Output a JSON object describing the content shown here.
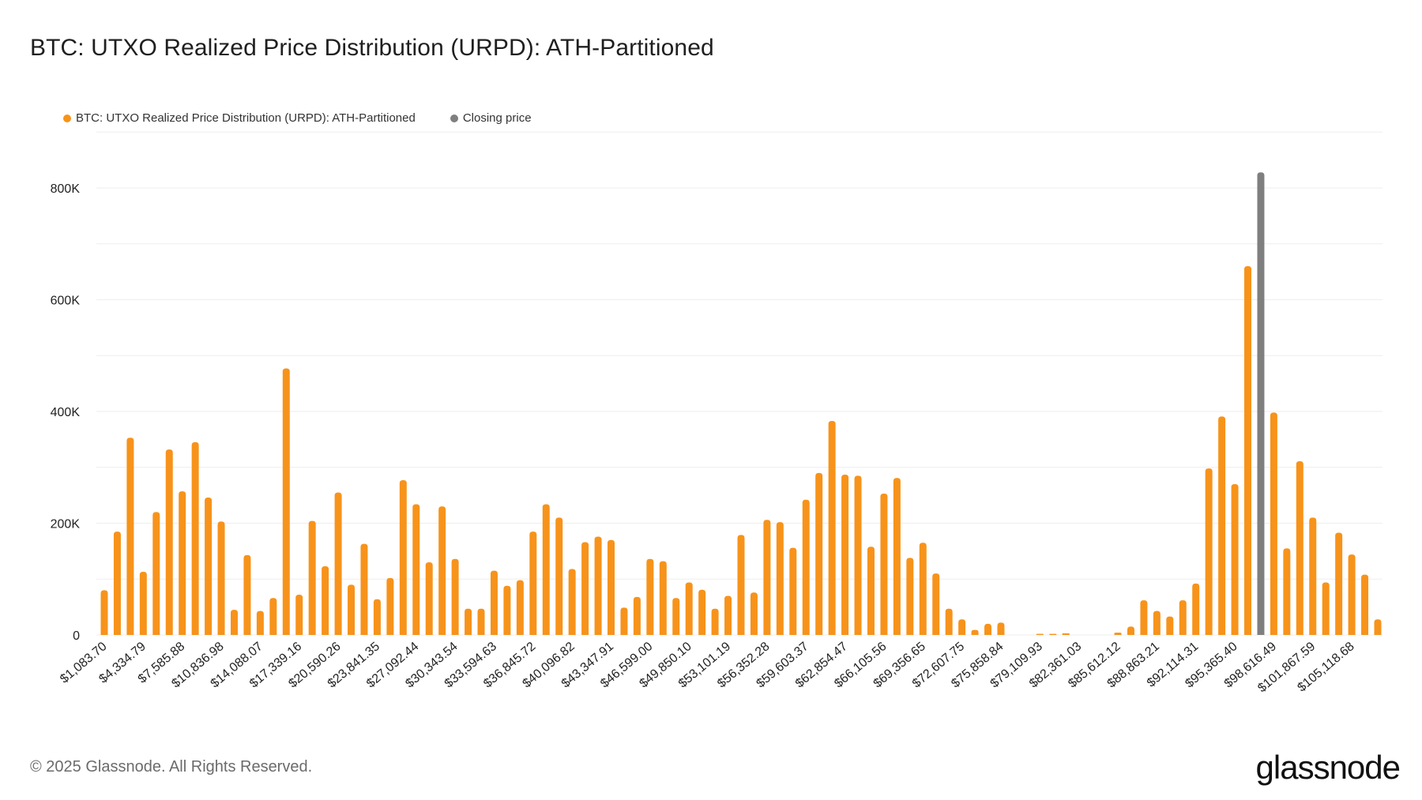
{
  "title": "BTC: UTXO Realized Price Distribution (URPD): ATH-Partitioned",
  "footer": {
    "copyright": "© 2025 Glassnode. All Rights Reserved.",
    "logo": "glassnode"
  },
  "colors": {
    "bar": "#f7931a",
    "closing": "#7f7f7f",
    "grid": "#eeeeee"
  },
  "chart_data": {
    "type": "bar",
    "title": "BTC: UTXO Realized Price Distribution (URPD): ATH-Partitioned",
    "xlabel": "",
    "ylabel": "",
    "ylim": [
      0,
      900000
    ],
    "yticks": [
      0,
      200000,
      400000,
      600000,
      800000
    ],
    "ytick_labels": [
      "0",
      "200K",
      "400K",
      "600K",
      "800K"
    ],
    "grid": true,
    "legend": {
      "placement": "top-left",
      "entries": [
        {
          "name": "BTC: UTXO Realized Price Distribution (URPD): ATH-Partitioned",
          "color": "#f7931a"
        },
        {
          "name": "Closing price",
          "color": "#7f7f7f"
        }
      ]
    },
    "xtick_labels": [
      "$1,083.70",
      "$4,334.79",
      "$7,585.88",
      "$10,836.98",
      "$14,088.07",
      "$17,339.16",
      "$20,590.26",
      "$23,841.35",
      "$27,092.44",
      "$30,343.54",
      "$33,594.63",
      "$36,845.72",
      "$40,096.82",
      "$43,347.91",
      "$46,599.00",
      "$49,850.10",
      "$53,101.19",
      "$56,352.28",
      "$59,603.37",
      "$62,854.47",
      "$66,105.56",
      "$69,356.65",
      "$72,607.75",
      "$75,858.84",
      "$79,109.93",
      "$82,361.03",
      "$85,612.12",
      "$88,863.21",
      "$92,114.31",
      "$95,365.40",
      "$98,616.49",
      "$101,867.59",
      "$105,118.68"
    ],
    "xtick_every": 3,
    "closing_index": 89,
    "series": [
      {
        "name": "BTC: UTXO Realized Price Distribution (URPD): ATH-Partitioned",
        "values": [
          80000,
          185000,
          353000,
          113000,
          220000,
          332000,
          257000,
          345000,
          246000,
          203000,
          45000,
          143000,
          43000,
          66000,
          477000,
          72000,
          204000,
          123000,
          255000,
          90000,
          163000,
          64000,
          102000,
          277000,
          234000,
          130000,
          230000,
          136000,
          47000,
          47000,
          115000,
          88000,
          98000,
          185000,
          234000,
          210000,
          118000,
          166000,
          176000,
          170000,
          49000,
          68000,
          136000,
          132000,
          66000,
          94000,
          81000,
          47000,
          70000,
          179000,
          76000,
          206000,
          202000,
          156000,
          242000,
          290000,
          383000,
          287000,
          285000,
          158000,
          253000,
          281000,
          138000,
          165000,
          110000,
          47000,
          28000,
          9000,
          20000,
          22000,
          0,
          0,
          2000,
          2000,
          1000,
          0,
          0,
          0,
          4000,
          15000,
          62000,
          43000,
          33000,
          62000,
          92000,
          298000,
          391000,
          270000,
          660000,
          828000,
          398000,
          155000,
          311000,
          210000,
          94000,
          183000,
          144000,
          108000,
          28000
        ]
      }
    ]
  }
}
